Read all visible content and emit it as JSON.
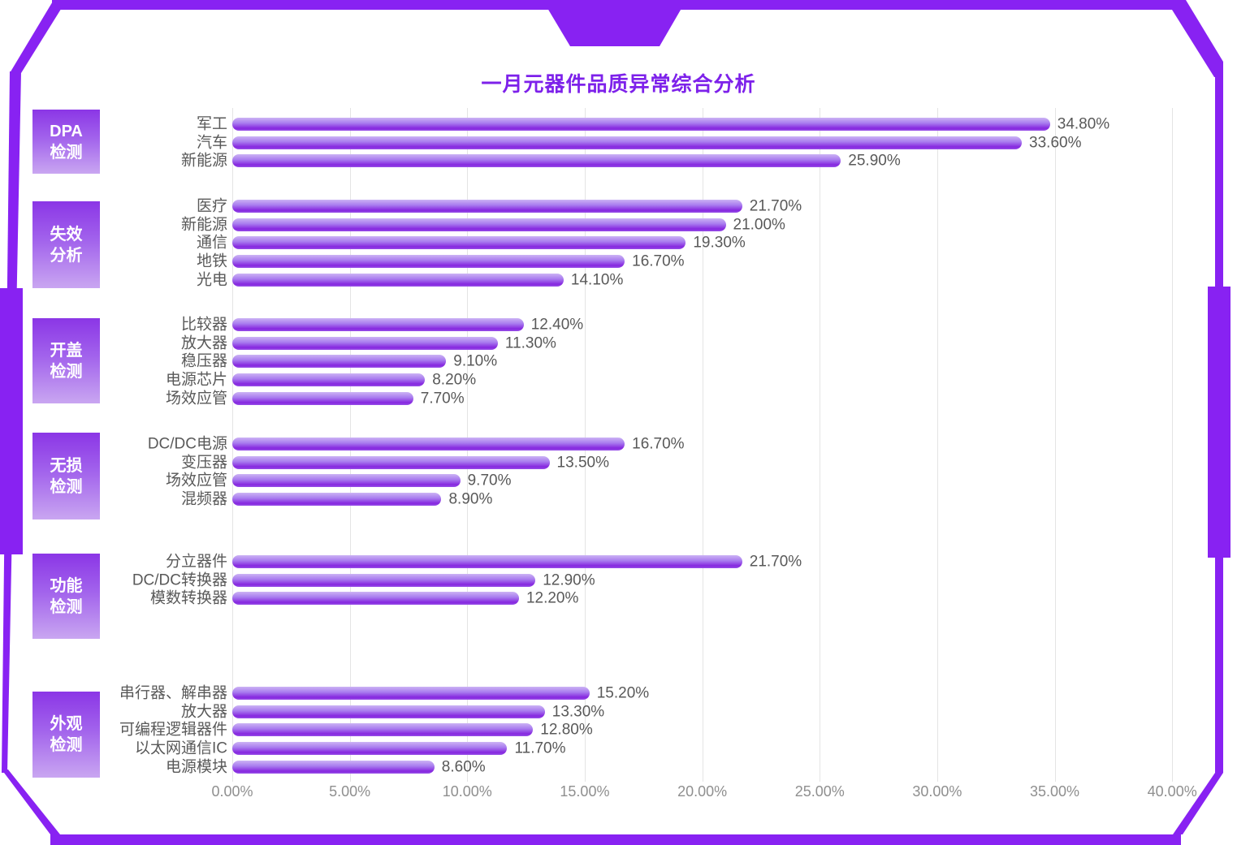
{
  "page": {
    "frame_color": "#8822f2",
    "background": "#ffffff"
  },
  "chart_data": {
    "type": "bar",
    "orientation": "horizontal",
    "title": "一月元器件品质异常综合分析",
    "title_color": "#7d21ea",
    "legend": "none",
    "grid": true,
    "x_axis": {
      "min": 0,
      "max": 40,
      "step": 5,
      "tick_labels": [
        "0.00%",
        "5.00%",
        "10.00%",
        "15.00%",
        "20.00%",
        "25.00%",
        "30.00%",
        "35.00%",
        "40.00%"
      ]
    },
    "colors": {
      "bar_gradient_top": "#ccb3f4",
      "bar_gradient_bottom": "#8627df",
      "group_block_top": "#8b36e6",
      "group_block_bottom": "#c9a6f1",
      "label_text": "#595959",
      "axis_text": "#8f8f8f"
    },
    "groups": [
      {
        "label": "DPA检测",
        "label_lines": [
          "DPA",
          "检测"
        ],
        "items": [
          {
            "name": "军工",
            "value": 34.8,
            "display": "34.80%"
          },
          {
            "name": "汽车",
            "value": 33.6,
            "display": "33.60%"
          },
          {
            "name": "新能源",
            "value": 25.9,
            "display": "25.90%"
          }
        ]
      },
      {
        "label": "失效分析",
        "label_lines": [
          "失效",
          "分析"
        ],
        "items": [
          {
            "name": "医疗",
            "value": 21.7,
            "display": "21.70%"
          },
          {
            "name": "新能源",
            "value": 21.0,
            "display": "21.00%"
          },
          {
            "name": "通信",
            "value": 19.3,
            "display": "19.30%"
          },
          {
            "name": "地铁",
            "value": 16.7,
            "display": "16.70%"
          },
          {
            "name": "光电",
            "value": 14.1,
            "display": "14.10%"
          }
        ]
      },
      {
        "label": "开盖检测",
        "label_lines": [
          "开盖",
          "检测"
        ],
        "items": [
          {
            "name": "比较器",
            "value": 12.4,
            "display": "12.40%"
          },
          {
            "name": "放大器",
            "value": 11.3,
            "display": "11.30%"
          },
          {
            "name": "稳压器",
            "value": 9.1,
            "display": "9.10%"
          },
          {
            "name": "电源芯片",
            "value": 8.2,
            "display": "8.20%"
          },
          {
            "name": "场效应管",
            "value": 7.7,
            "display": "7.70%"
          }
        ]
      },
      {
        "label": "无损检测",
        "label_lines": [
          "无损",
          "检测"
        ],
        "items": [
          {
            "name": "DC/DC电源",
            "value": 16.7,
            "display": "16.70%"
          },
          {
            "name": "变压器",
            "value": 13.5,
            "display": "13.50%"
          },
          {
            "name": "场效应管",
            "value": 9.7,
            "display": "9.70%"
          },
          {
            "name": "混频器",
            "value": 8.9,
            "display": "8.90%"
          }
        ]
      },
      {
        "label": "功能检测",
        "label_lines": [
          "功能",
          "检测"
        ],
        "items": [
          {
            "name": "分立器件",
            "value": 21.7,
            "display": "21.70%"
          },
          {
            "name": "DC/DC转换器",
            "value": 12.9,
            "display": "12.90%"
          },
          {
            "name": "模数转换器",
            "value": 12.2,
            "display": "12.20%"
          }
        ]
      },
      {
        "label": "外观检测",
        "label_lines": [
          "外观",
          "检测"
        ],
        "items": [
          {
            "name": "串行器、解串器",
            "value": 15.2,
            "display": "15.20%"
          },
          {
            "name": "放大器",
            "value": 13.3,
            "display": "13.30%"
          },
          {
            "name": "可编程逻辑器件",
            "value": 12.8,
            "display": "12.80%"
          },
          {
            "name": "以太网通信IC",
            "value": 11.7,
            "display": "11.70%"
          },
          {
            "name": "电源模块",
            "value": 8.6,
            "display": "8.60%"
          }
        ]
      }
    ]
  }
}
